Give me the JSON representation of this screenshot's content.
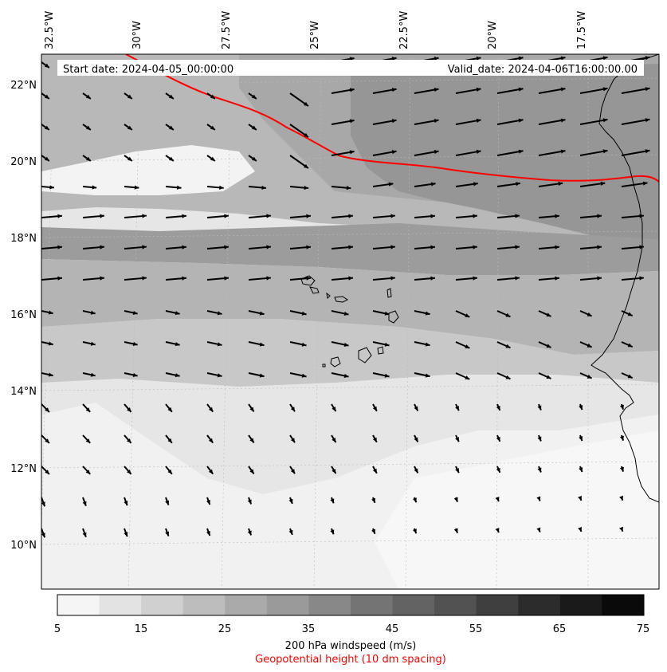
{
  "map": {
    "header": {
      "start_date": "Start date: 2024-04-05_00:00:00",
      "valid_date": "Valid_date: 2024-04-06T16:00:00.00"
    },
    "lon_labels": [
      "32.5°W",
      "30°W",
      "27.5°W",
      "25°W",
      "22.5°W",
      "20°W",
      "17.5°W"
    ],
    "lat_labels": [
      "22°N",
      "20°N",
      "18°N",
      "16°N",
      "14°N",
      "12°N",
      "10°N"
    ],
    "lon_range": [
      -33,
      -15.5
    ],
    "lat_range": [
      8.9,
      22.8
    ]
  },
  "colorbar": {
    "ticks": [
      "5",
      "15",
      "25",
      "35",
      "45",
      "55",
      "65",
      "75"
    ],
    "colors": [
      "#f5f5f5",
      "#e3e3e3",
      "#d0d0d0",
      "#bdbdbd",
      "#aaaaaa",
      "#9a9a9a",
      "#888888",
      "#747474",
      "#636363",
      "#525252",
      "#3f3f3f",
      "#2c2c2c",
      "#1a1a1a",
      "#0a0a0a"
    ],
    "label": "200 hPa windspeed (m/s)",
    "sublabel": "Geopotential height (10 dm spacing)",
    "sublabel_color": "#ff0000"
  },
  "colors": {
    "contour": "#ff0000",
    "arrow": "#000000",
    "coast": "#000000",
    "grid": "#bbbbbb"
  }
}
